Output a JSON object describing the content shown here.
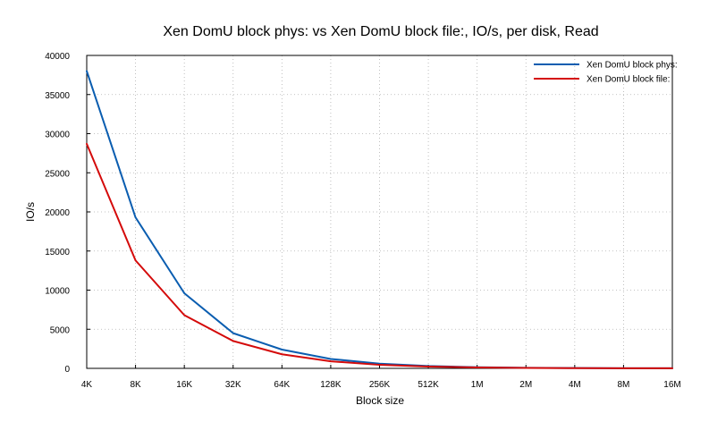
{
  "chart_data": {
    "type": "line",
    "title": "Xen DomU block phys: vs Xen DomU block file:, IO/s, per disk, Read",
    "xlabel": "Block size",
    "ylabel": "IO/s",
    "categories": [
      "4K",
      "8K",
      "16K",
      "32K",
      "64K",
      "128K",
      "256K",
      "512K",
      "1M",
      "2M",
      "4M",
      "8M",
      "16M"
    ],
    "ylim": [
      0,
      40000
    ],
    "yticks": [
      "0",
      "5000",
      "10000",
      "15000",
      "20000",
      "25000",
      "30000",
      "35000",
      "40000"
    ],
    "grid": true,
    "legend_position": "top-right",
    "series": [
      {
        "name": "Xen DomU block phys:",
        "color": "#0a5db0",
        "values": [
          38000,
          19300,
          9600,
          4500,
          2400,
          1200,
          600,
          300,
          150,
          75,
          40,
          20,
          10
        ]
      },
      {
        "name": "Xen DomU block file:",
        "color": "#d40a0a",
        "values": [
          28700,
          13800,
          6800,
          3500,
          1800,
          900,
          450,
          230,
          115,
          60,
          30,
          15,
          8
        ]
      }
    ]
  }
}
